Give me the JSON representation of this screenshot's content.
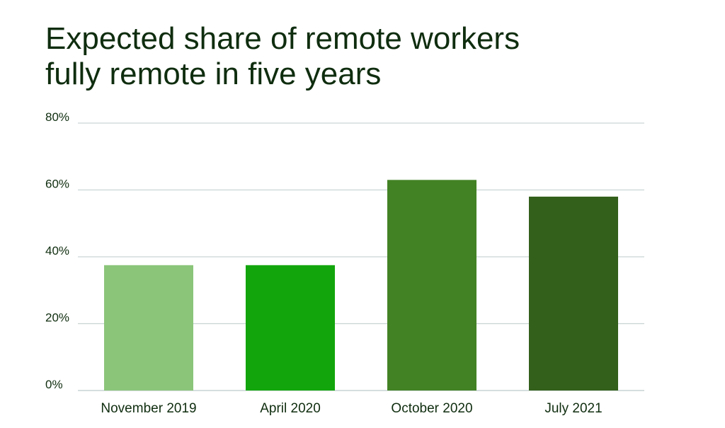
{
  "chart_data": {
    "type": "bar",
    "title_lines": [
      "Expected share of remote workers",
      "fully remote in five years"
    ],
    "categories": [
      "November 2019",
      "April 2020",
      "October 2020",
      "July 2021"
    ],
    "values": [
      37.5,
      37.5,
      63,
      58
    ],
    "value_unit": "%",
    "ylim": [
      0,
      80
    ],
    "yticks": [
      0,
      20,
      40,
      60,
      80
    ],
    "ytick_labels": [
      "0%",
      "20%",
      "40%",
      "60%",
      "80%"
    ],
    "xlabel": "",
    "ylabel": "",
    "grid": true,
    "legend": "none",
    "bar_colors": [
      "#8bc57a",
      "#12a60c",
      "#438224",
      "#33601b"
    ],
    "grid_color": "#c9d3d3",
    "text_color": "#0f2d0f"
  }
}
